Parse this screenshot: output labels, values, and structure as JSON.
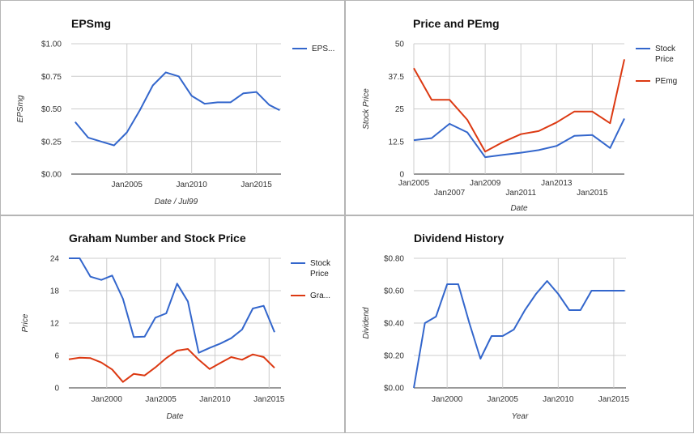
{
  "chart_data": [
    {
      "type": "line",
      "title": "EPSmg",
      "xlabel": "Date / Jul99",
      "ylabel": "EPSmg",
      "x": [
        2001,
        2002,
        2003,
        2004,
        2005,
        2006,
        2007,
        2008,
        2009,
        2010,
        2011,
        2012,
        2013,
        2014,
        2015,
        2016,
        2016.8
      ],
      "series": [
        {
          "name": "EPS...",
          "color": "#3366cc",
          "values": [
            0.4,
            0.28,
            0.25,
            0.22,
            0.32,
            0.49,
            0.68,
            0.78,
            0.75,
            0.6,
            0.54,
            0.55,
            0.55,
            0.62,
            0.63,
            0.53,
            0.49
          ]
        }
      ],
      "xlim": [
        2000.7,
        2016.9
      ],
      "ylim": [
        0,
        1.0
      ],
      "yticks": [
        0,
        0.25,
        0.5,
        0.75,
        1.0
      ],
      "ytick_labels": [
        "$0.00",
        "$0.25",
        "$0.50",
        "$0.75",
        "$1.00"
      ],
      "xticks": [
        2005,
        2010,
        2015
      ],
      "xtick_labels": [
        "Jan2005",
        "Jan2010",
        "Jan2015"
      ],
      "legend": "right"
    },
    {
      "type": "line",
      "title": "Price and PEmg",
      "xlabel": "Date",
      "ylabel": "Stock Price",
      "x": [
        2005,
        2006,
        2007,
        2008,
        2009,
        2010,
        2011,
        2012,
        2013,
        2014,
        2015,
        2016,
        2016.8
      ],
      "series": [
        {
          "name": "Stock Price",
          "color": "#3366cc",
          "values": [
            13.0,
            13.8,
            19.3,
            16.0,
            6.5,
            7.4,
            8.2,
            9.2,
            10.8,
            14.7,
            15.0,
            10.0,
            21.3
          ]
        },
        {
          "name": "PEmg",
          "color": "#dc3912",
          "values": [
            40.6,
            28.5,
            28.5,
            20.8,
            8.6,
            12.3,
            15.3,
            16.5,
            19.8,
            24.0,
            24.0,
            19.5,
            44.0
          ]
        }
      ],
      "xlim": [
        2005,
        2016.8
      ],
      "ylim": [
        0,
        50
      ],
      "yticks": [
        0,
        12.5,
        25,
        37.5,
        50
      ],
      "ytick_labels": [
        "0",
        "12.5",
        "25",
        "37.5",
        "50"
      ],
      "xticks": [
        2005,
        2007,
        2009,
        2011,
        2013,
        2015
      ],
      "xtick_labels": [
        "Jan2005",
        "Jan2007",
        "Jan2009",
        "Jan2011",
        "Jan2013",
        "Jan2015"
      ],
      "legend": "right"
    },
    {
      "type": "line",
      "title": "Graham Number and Stock Price",
      "xlabel": "Date",
      "ylabel": "Price",
      "x": [
        1996.5,
        1997.5,
        1998.5,
        1999.5,
        2000.5,
        2001.5,
        2002.5,
        2003.5,
        2004.5,
        2005.5,
        2006.5,
        2007.5,
        2008.5,
        2009.5,
        2010.5,
        2011.5,
        2012.5,
        2013.5,
        2014.5,
        2015.5
      ],
      "series": [
        {
          "name": "Stock Price",
          "color": "#3366cc",
          "values": [
            24.0,
            24.0,
            20.6,
            20.0,
            20.8,
            16.5,
            9.4,
            9.5,
            13.0,
            13.8,
            19.3,
            16.0,
            6.5,
            7.4,
            8.2,
            9.2,
            10.8,
            14.7,
            15.2,
            10.3
          ]
        },
        {
          "name": "Gra...",
          "color": "#dc3912",
          "values": [
            5.3,
            5.6,
            5.5,
            4.7,
            3.4,
            1.1,
            2.6,
            2.3,
            3.8,
            5.5,
            6.9,
            7.2,
            5.2,
            3.5,
            4.6,
            5.7,
            5.2,
            6.2,
            5.7,
            3.7
          ]
        }
      ],
      "xlim": [
        1996.5,
        2016.1
      ],
      "ylim": [
        0,
        24
      ],
      "yticks": [
        0,
        6,
        12,
        18,
        24
      ],
      "ytick_labels": [
        "0",
        "6",
        "12",
        "18",
        "24"
      ],
      "xticks": [
        2000,
        2005,
        2010,
        2015
      ],
      "xtick_labels": [
        "Jan2000",
        "Jan2005",
        "Jan2010",
        "Jan2015"
      ],
      "legend": "right"
    },
    {
      "type": "line",
      "title": "Dividend History",
      "xlabel": "Year",
      "ylabel": "Dividend",
      "x": [
        1997,
        1998,
        1999,
        2000,
        2001,
        2002,
        2003,
        2004,
        2005,
        2006,
        2007,
        2008,
        2009,
        2010,
        2011,
        2012,
        2013,
        2014,
        2015,
        2016
      ],
      "series": [
        {
          "name": "Dividend",
          "color": "#3366cc",
          "values": [
            0.0,
            0.4,
            0.44,
            0.64,
            0.64,
            0.4,
            0.18,
            0.32,
            0.32,
            0.36,
            0.48,
            0.58,
            0.66,
            0.58,
            0.48,
            0.48,
            0.6,
            0.6,
            0.6,
            0.6
          ]
        }
      ],
      "xlim": [
        1997,
        2016.1
      ],
      "ylim": [
        0,
        0.8
      ],
      "yticks": [
        0,
        0.2,
        0.4,
        0.6,
        0.8
      ],
      "ytick_labels": [
        "$0.00",
        "$0.20",
        "$0.40",
        "$0.60",
        "$0.80"
      ],
      "xticks": [
        2000,
        2005,
        2010,
        2015
      ],
      "xtick_labels": [
        "Jan2000",
        "Jan2005",
        "Jan2010",
        "Jan2015"
      ],
      "legend": "none"
    }
  ]
}
